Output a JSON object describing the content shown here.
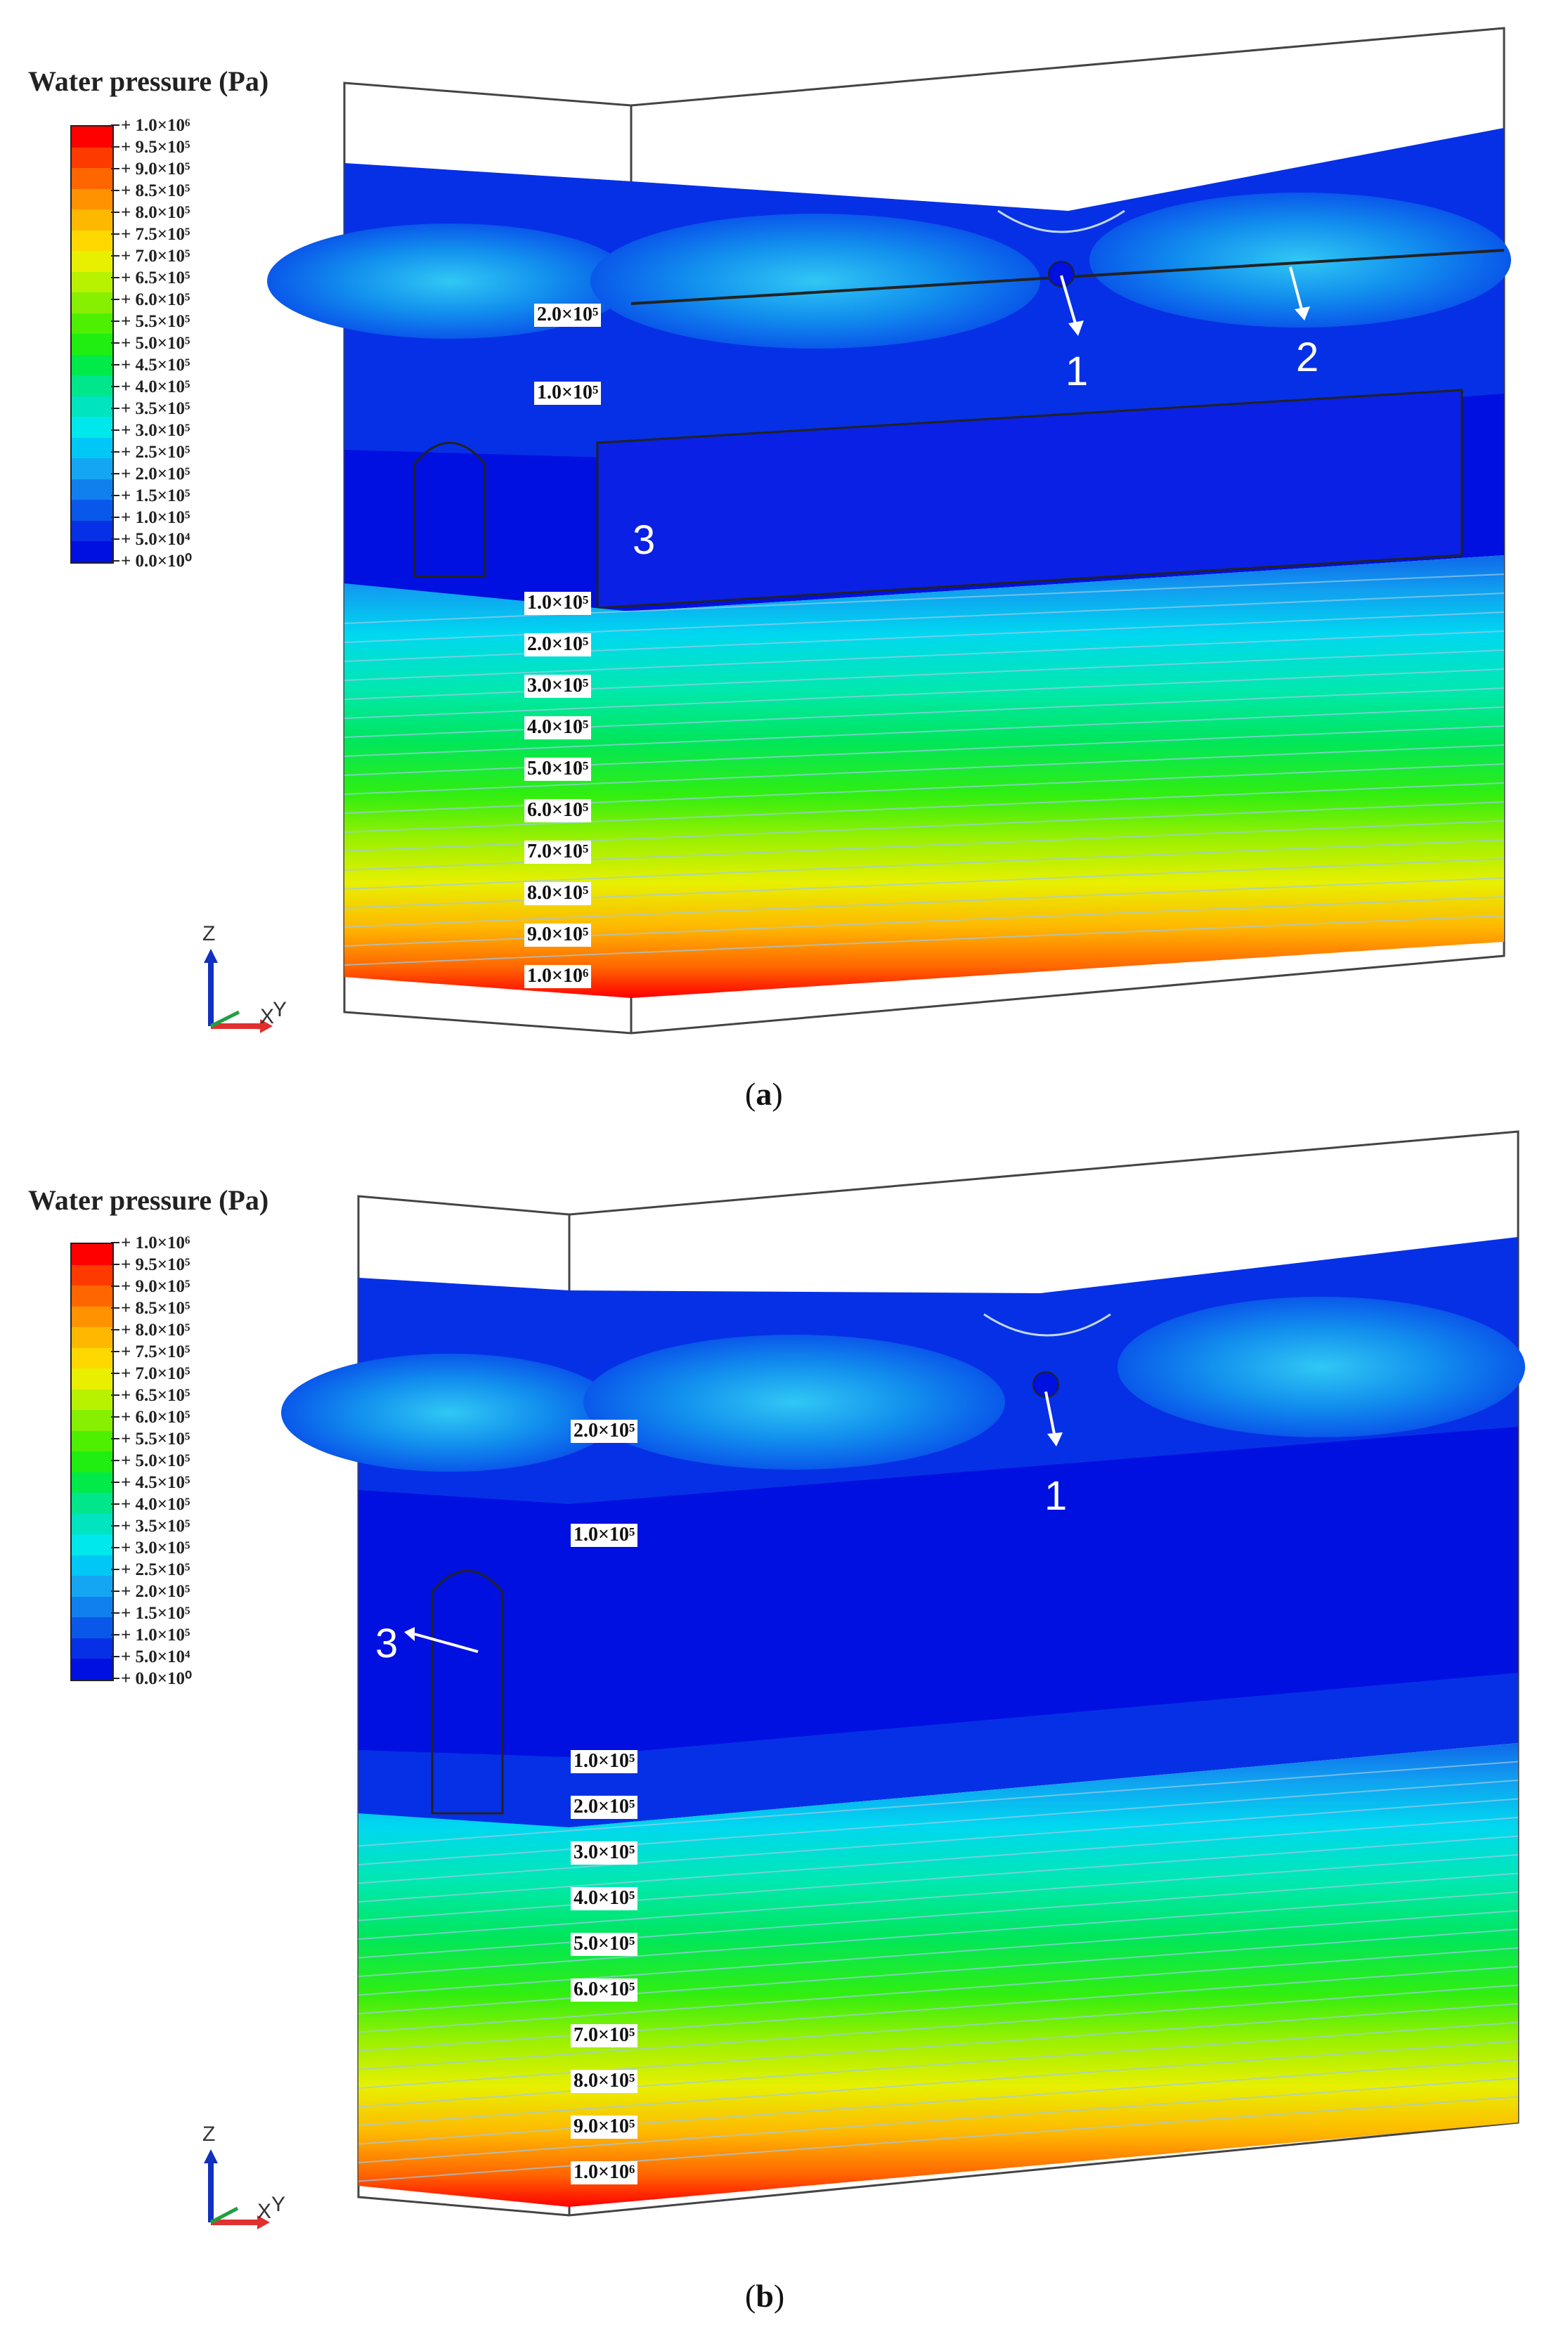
{
  "legend": {
    "title": "Water pressure (Pa)",
    "entries": [
      "+ 1.0×10⁶",
      "+ 9.5×10⁵",
      "+ 9.0×10⁵",
      "+ 8.5×10⁵",
      "+ 8.0×10⁵",
      "+ 7.5×10⁵",
      "+ 7.0×10⁵",
      "+ 6.5×10⁵",
      "+ 6.0×10⁵",
      "+ 5.5×10⁵",
      "+ 5.0×10⁵",
      "+ 4.5×10⁵",
      "+ 4.0×10⁵",
      "+ 3.5×10⁵",
      "+ 3.0×10⁵",
      "+ 2.5×10⁵",
      "+ 2.0×10⁵",
      "+ 1.5×10⁵",
      "+ 1.0×10⁵",
      "+ 5.0×10⁴",
      "+ 0.0×10⁰"
    ],
    "colors": [
      "#ff0000",
      "#ff3a00",
      "#ff6600",
      "#ff9200",
      "#ffb800",
      "#ffd800",
      "#e8f000",
      "#b8f200",
      "#86f000",
      "#4ef000",
      "#20ee10",
      "#00ea4a",
      "#00e68a",
      "#00e4c0",
      "#00e8ec",
      "#00c8f6",
      "#14a6f2",
      "#1080ee",
      "#0a58ea",
      "#0630e6",
      "#0010e0"
    ]
  },
  "panels": [
    {
      "id": "a",
      "caption_letter": "a",
      "markers": [
        "1",
        "2",
        "3"
      ],
      "upper_labels": [
        "2.0×10⁵",
        "1.0×10⁵"
      ],
      "lower_labels": [
        "1.0×10⁵",
        "2.0×10⁵",
        "3.0×10⁵",
        "4.0×10⁵",
        "5.0×10⁵",
        "6.0×10⁵",
        "7.0×10⁵",
        "8.0×10⁵",
        "9.0×10⁵",
        "1.0×10⁶"
      ]
    },
    {
      "id": "b",
      "caption_letter": "b",
      "markers": [
        "1",
        "3"
      ],
      "upper_labels": [
        "2.0×10⁵",
        "1.0×10⁵"
      ],
      "lower_labels": [
        "1.0×10⁵",
        "2.0×10⁵",
        "3.0×10⁵",
        "4.0×10⁵",
        "5.0×10⁵",
        "6.0×10⁵",
        "7.0×10⁵",
        "8.0×10⁵",
        "9.0×10⁵",
        "1.0×10⁶"
      ]
    }
  ],
  "axes": {
    "z": "Z",
    "x": "X",
    "y": "Y"
  }
}
